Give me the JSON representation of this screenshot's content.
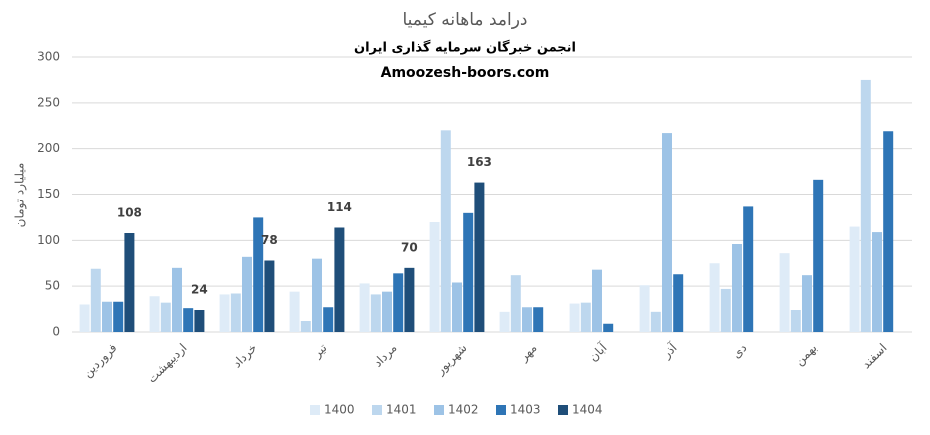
{
  "chart_data": {
    "type": "bar",
    "title": "درامد ماهانه کیمیا",
    "subtitle": "انجمن خبرگان سرمایه گذاری ایران",
    "subtitle2": "Amoozesh-boors.com",
    "y_label": "میلیارد تومان",
    "categories": [
      "فروردین",
      "اردیبهشت",
      "خرداد",
      "تیر",
      "مرداد",
      "شهریور",
      "مهر",
      "آبان",
      "آذر",
      "دی",
      "بهمن",
      "اسفند"
    ],
    "series": [
      {
        "name": "1400",
        "color": "#deebf7",
        "values": [
          30,
          39,
          41,
          44,
          53,
          120,
          22,
          31,
          51,
          75,
          86,
          115
        ]
      },
      {
        "name": "1401",
        "color": "#bdd7ee",
        "values": [
          69,
          32,
          42,
          12,
          41,
          220,
          62,
          32,
          22,
          47,
          24,
          275
        ]
      },
      {
        "name": "1402",
        "color": "#9dc3e6",
        "values": [
          33,
          70,
          82,
          80,
          44,
          54,
          27,
          68,
          217,
          96,
          62,
          109
        ]
      },
      {
        "name": "1403",
        "color": "#2e75b6",
        "values": [
          33,
          26,
          125,
          27,
          64,
          130,
          27,
          9,
          63,
          137,
          166,
          219
        ]
      },
      {
        "name": "1404",
        "color": "#1f4e79",
        "show_labels": true,
        "values": [
          108,
          24,
          78,
          114,
          70,
          163,
          null,
          null,
          null,
          null,
          null,
          null
        ]
      }
    ],
    "ylim": [
      0,
      300
    ],
    "yticks": [
      0,
      50,
      100,
      150,
      200,
      250,
      300
    ],
    "grid": true,
    "legend": "bottom"
  }
}
